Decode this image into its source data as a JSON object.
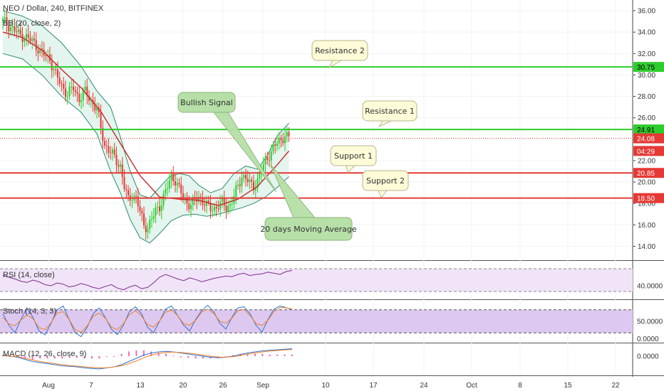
{
  "chart_data": {
    "type": "candlestick",
    "title": "NEO / Dollar, 240, BITFINEX",
    "symbol": "NEO / Dollar",
    "interval": "240",
    "exchange": "BITFINEX",
    "price_axis": {
      "ticks": [
        "36.00",
        "34.00",
        "32.00",
        "30.00",
        "28.00",
        "26.00",
        "24.00",
        "22.00",
        "20.00",
        "18.00",
        "16.00",
        "14.00"
      ],
      "range": [
        12.7,
        37.0
      ]
    },
    "price_badges": [
      {
        "label": "30.75",
        "value": 30.75,
        "color": "#2ecc2e",
        "text_color": "#000000"
      },
      {
        "label": "24.91",
        "value": 24.91,
        "color": "#2ecc2e",
        "text_color": "#000000"
      },
      {
        "label": "24.08",
        "value": 24.08,
        "color": "#e53935",
        "text_color": "#ffffff"
      },
      {
        "label": "04:29",
        "value": 22.9,
        "color": "#e53935",
        "text_color": "#ffffff"
      },
      {
        "label": "20.85",
        "value": 20.85,
        "color": "#e53935",
        "text_color": "#ffffff"
      },
      {
        "label": "18.50",
        "value": 18.5,
        "color": "#e53935",
        "text_color": "#ffffff"
      }
    ],
    "horizontal_lines": [
      {
        "value": 30.75,
        "color": "#2ecc2e",
        "name": "Resistance 2"
      },
      {
        "value": 24.91,
        "color": "#2ecc2e",
        "name": "Resistance 1"
      },
      {
        "value": 20.85,
        "color": "#e53935",
        "name": "Support 1"
      },
      {
        "value": 18.5,
        "color": "#e53935",
        "name": "Support 2"
      }
    ],
    "last_price": 24.08,
    "x_axis_labels": [
      "Aug",
      "7",
      "13",
      "20",
      "26",
      "Sep",
      "10",
      "17",
      "24",
      "Oct",
      "8",
      "15",
      "22"
    ],
    "close_path": [
      [
        0,
        35.0
      ],
      [
        4,
        34.5
      ],
      [
        8,
        33.8
      ],
      [
        12,
        33.5
      ],
      [
        16,
        33.0
      ],
      [
        20,
        32.0
      ],
      [
        24,
        31.5
      ],
      [
        27,
        30.0
      ],
      [
        30,
        29.0
      ],
      [
        33,
        28.2
      ],
      [
        36,
        28.8
      ],
      [
        39,
        27.8
      ],
      [
        42,
        28.4
      ],
      [
        45,
        27.6
      ],
      [
        48,
        26.8
      ],
      [
        50,
        25.0
      ],
      [
        52,
        23.5
      ],
      [
        54,
        23.0
      ],
      [
        56,
        22.5
      ],
      [
        58,
        22.0
      ],
      [
        60,
        21.5
      ],
      [
        62,
        19.5
      ],
      [
        64,
        18.3
      ],
      [
        66,
        18.8
      ],
      [
        68,
        18.5
      ],
      [
        70,
        17.2
      ],
      [
        72,
        16.0
      ],
      [
        74,
        15.8
      ],
      [
        76,
        16.5
      ],
      [
        78,
        17.3
      ],
      [
        80,
        17.8
      ],
      [
        82,
        18.6
      ],
      [
        84,
        19.5
      ],
      [
        86,
        20.6
      ],
      [
        88,
        20.2
      ],
      [
        90,
        19.3
      ],
      [
        92,
        18.6
      ],
      [
        94,
        18.1
      ],
      [
        96,
        17.9
      ],
      [
        98,
        18.2
      ],
      [
        100,
        18.6
      ],
      [
        102,
        18.3
      ],
      [
        104,
        17.8
      ],
      [
        106,
        17.5
      ],
      [
        108,
        17.6
      ],
      [
        110,
        17.8
      ],
      [
        112,
        18.0
      ],
      [
        114,
        17.7
      ],
      [
        116,
        17.9
      ],
      [
        118,
        18.6
      ],
      [
        120,
        19.6
      ],
      [
        122,
        20.6
      ],
      [
        124,
        20.4
      ],
      [
        126,
        19.8
      ],
      [
        128,
        19.6
      ],
      [
        130,
        20.2
      ],
      [
        132,
        21.0
      ],
      [
        134,
        21.9
      ],
      [
        136,
        22.6
      ],
      [
        138,
        23.2
      ],
      [
        140,
        23.6
      ],
      [
        142,
        23.9
      ],
      [
        144,
        24.5
      ],
      [
        146,
        24.08
      ]
    ],
    "ma20_path": [
      [
        0,
        34.0
      ],
      [
        10,
        33.5
      ],
      [
        20,
        32.3
      ],
      [
        30,
        30.5
      ],
      [
        40,
        28.8
      ],
      [
        50,
        26.6
      ],
      [
        60,
        23.6
      ],
      [
        70,
        20.6
      ],
      [
        80,
        18.6
      ],
      [
        90,
        18.4
      ],
      [
        100,
        18.3
      ],
      [
        110,
        17.8
      ],
      [
        120,
        18.4
      ],
      [
        130,
        19.6
      ],
      [
        140,
        21.6
      ],
      [
        146,
        22.9
      ]
    ],
    "bb_upper_path": [
      [
        0,
        36.0
      ],
      [
        10,
        35.5
      ],
      [
        20,
        34.6
      ],
      [
        30,
        33.0
      ],
      [
        40,
        30.8
      ],
      [
        48,
        28.5
      ],
      [
        55,
        27.0
      ],
      [
        60,
        24.2
      ],
      [
        65,
        21.0
      ],
      [
        70,
        18.8
      ],
      [
        75,
        18.5
      ],
      [
        80,
        19.5
      ],
      [
        85,
        20.5
      ],
      [
        90,
        20.8
      ],
      [
        95,
        20.6
      ],
      [
        100,
        19.7
      ],
      [
        106,
        19.0
      ],
      [
        112,
        19.4
      ],
      [
        118,
        20.8
      ],
      [
        124,
        21.5
      ],
      [
        130,
        21.2
      ],
      [
        135,
        22.5
      ],
      [
        140,
        24.3
      ],
      [
        146,
        25.5
      ]
    ],
    "bb_lower_path": [
      [
        0,
        32.0
      ],
      [
        10,
        31.5
      ],
      [
        20,
        30.0
      ],
      [
        30,
        28.0
      ],
      [
        40,
        26.5
      ],
      [
        48,
        24.5
      ],
      [
        55,
        21.0
      ],
      [
        60,
        19.0
      ],
      [
        65,
        16.5
      ],
      [
        70,
        14.8
      ],
      [
        75,
        14.3
      ],
      [
        80,
        15.2
      ],
      [
        86,
        16.4
      ],
      [
        92,
        16.9
      ],
      [
        98,
        17.0
      ],
      [
        104,
        16.8
      ],
      [
        110,
        17.0
      ],
      [
        116,
        17.3
      ],
      [
        122,
        17.6
      ],
      [
        128,
        18.0
      ],
      [
        134,
        18.6
      ],
      [
        140,
        19.5
      ],
      [
        146,
        20.5
      ]
    ],
    "indicators": [
      {
        "name": "RSI",
        "label": "RSI (14, close)",
        "ticks": [
          "40.0000"
        ],
        "range": [
          20,
          80
        ],
        "band": [
          30,
          70
        ],
        "values": [
          58,
          55,
          52,
          48,
          46,
          50,
          47,
          42,
          40,
          45,
          43,
          38,
          40,
          44,
          41,
          37,
          35,
          39,
          42,
          36,
          33,
          38,
          41,
          35,
          37,
          45,
          55,
          60,
          56,
          52,
          49,
          54,
          51,
          47,
          50,
          53,
          55,
          57,
          56,
          60,
          62,
          58,
          60,
          61,
          64,
          62,
          60,
          65,
          67
        ]
      },
      {
        "name": "Stoch",
        "label": "Stoch (14, 3, 3)",
        "ticks": [
          "50.0000",
          "0.0000"
        ],
        "range": [
          0,
          100
        ],
        "band": [
          20,
          80
        ],
        "values": [
          70,
          40,
          20,
          55,
          85,
          60,
          25,
          15,
          45,
          80,
          90,
          55,
          20,
          10,
          35,
          70,
          85,
          60,
          30,
          15,
          40,
          75,
          88,
          70,
          35,
          20,
          50,
          82,
          90,
          65,
          40,
          25,
          55,
          78,
          92,
          75,
          45,
          30,
          60,
          85,
          88,
          70,
          40,
          22,
          55,
          82,
          90,
          86,
          80
        ]
      },
      {
        "name": "MACD",
        "label": "MACD (12, 26, close, 9)",
        "ticks": [
          "0.0000"
        ],
        "range": [
          -1.6,
          1.0
        ],
        "macd": [
          0.1,
          0.0,
          -0.1,
          -0.3,
          -0.5,
          -0.6,
          -0.7,
          -0.8,
          -0.9,
          -0.95,
          -1.0,
          -1.1,
          -1.15,
          -1.2,
          -1.1,
          -1.0,
          -0.8,
          -0.5,
          -0.2,
          0.1,
          0.3,
          0.4,
          0.45,
          0.4,
          0.3,
          0.2,
          0.1,
          0.0,
          -0.1,
          -0.15,
          -0.1,
          0.0,
          0.15,
          0.3,
          0.4,
          0.5,
          0.55,
          0.6,
          0.65,
          0.7
        ],
        "signal": [
          0.05,
          0.0,
          -0.05,
          -0.2,
          -0.35,
          -0.5,
          -0.6,
          -0.7,
          -0.8,
          -0.88,
          -0.93,
          -1.0,
          -1.05,
          -1.1,
          -1.08,
          -1.0,
          -0.9,
          -0.7,
          -0.45,
          -0.15,
          0.1,
          0.25,
          0.35,
          0.38,
          0.35,
          0.28,
          0.2,
          0.1,
          0.0,
          -0.08,
          -0.1,
          -0.05,
          0.05,
          0.2,
          0.3,
          0.4,
          0.48,
          0.53,
          0.58,
          0.63
        ]
      }
    ],
    "annotations": [
      {
        "text": "Resistance 2",
        "fill": "#fdfbd8",
        "border": "#b8b48a"
      },
      {
        "text": "Resistance 1",
        "fill": "#fdfbd8",
        "border": "#b8b48a"
      },
      {
        "text": "Support 1",
        "fill": "#fdfbd8",
        "border": "#b8b48a"
      },
      {
        "text": "Support 2",
        "fill": "#fdfbd8",
        "border": "#b8b48a"
      },
      {
        "text": "Bullish Signal",
        "fill": "#b7e0a8",
        "border": "#8ab47a"
      },
      {
        "text": "20 days Moving Average",
        "fill": "#b7e0a8",
        "border": "#8ab47a"
      }
    ],
    "colors": {
      "up": "#2ecc2e",
      "down": "#e53935",
      "ma": "#c62828",
      "bands": "#2e8b6e",
      "band_fill": "#e4f4ee",
      "rsi": "#7b2d8e",
      "stoch_k": "#3070d0",
      "stoch_d": "#f08020",
      "macd": "#3070d0",
      "signal": "#f08020",
      "hist": "#e040a0"
    }
  }
}
